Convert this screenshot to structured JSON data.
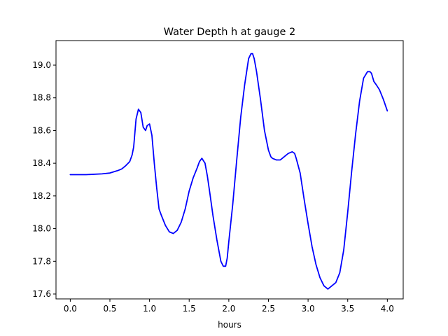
{
  "chart_data": {
    "type": "line",
    "title": "Water Depth h at gauge 2",
    "xlabel": "hours",
    "ylabel": "",
    "xlim": [
      -0.18,
      4.2
    ],
    "ylim": [
      17.57,
      19.15
    ],
    "xticks": [
      0.0,
      0.5,
      1.0,
      1.5,
      2.0,
      2.5,
      3.0,
      3.5,
      4.0
    ],
    "xtick_labels": [
      "0.0",
      "0.5",
      "1.0",
      "1.5",
      "2.0",
      "2.5",
      "3.0",
      "3.5",
      "4.0"
    ],
    "yticks": [
      17.6,
      17.8,
      18.0,
      18.2,
      18.4,
      18.6,
      18.8,
      19.0
    ],
    "ytick_labels": [
      "17.6",
      "17.8",
      "18.0",
      "18.2",
      "18.4",
      "18.6",
      "18.8",
      "19.0"
    ],
    "grid": false,
    "legend": "none",
    "series": [
      {
        "color": "#0000ff",
        "x": [
          0.0,
          0.2,
          0.4,
          0.5,
          0.6,
          0.65,
          0.7,
          0.75,
          0.78,
          0.8,
          0.83,
          0.86,
          0.89,
          0.92,
          0.95,
          0.97,
          1.0,
          1.03,
          1.06,
          1.09,
          1.12,
          1.15,
          1.2,
          1.25,
          1.3,
          1.35,
          1.4,
          1.45,
          1.5,
          1.55,
          1.6,
          1.63,
          1.66,
          1.7,
          1.73,
          1.76,
          1.8,
          1.85,
          1.9,
          1.93,
          1.96,
          1.98,
          2.0,
          2.05,
          2.1,
          2.15,
          2.2,
          2.25,
          2.28,
          2.3,
          2.32,
          2.35,
          2.4,
          2.45,
          2.5,
          2.53,
          2.55,
          2.6,
          2.65,
          2.7,
          2.75,
          2.8,
          2.83,
          2.85,
          2.9,
          2.95,
          3.0,
          3.05,
          3.1,
          3.15,
          3.2,
          3.25,
          3.3,
          3.35,
          3.4,
          3.45,
          3.5,
          3.55,
          3.6,
          3.65,
          3.7,
          3.75,
          3.78,
          3.8,
          3.83,
          3.86,
          3.9,
          3.95,
          4.0
        ],
        "y": [
          18.33,
          18.33,
          18.335,
          18.34,
          18.355,
          18.365,
          18.385,
          18.41,
          18.45,
          18.5,
          18.67,
          18.73,
          18.71,
          18.62,
          18.6,
          18.63,
          18.64,
          18.57,
          18.4,
          18.25,
          18.12,
          18.08,
          18.02,
          17.98,
          17.97,
          17.99,
          18.04,
          18.12,
          18.23,
          18.31,
          18.37,
          18.41,
          18.43,
          18.4,
          18.32,
          18.22,
          18.08,
          17.93,
          17.8,
          17.77,
          17.77,
          17.82,
          17.92,
          18.15,
          18.42,
          18.68,
          18.88,
          19.04,
          19.07,
          19.07,
          19.04,
          18.96,
          18.79,
          18.6,
          18.48,
          18.44,
          18.43,
          18.42,
          18.42,
          18.44,
          18.46,
          18.47,
          18.46,
          18.43,
          18.34,
          18.18,
          18.03,
          17.89,
          17.78,
          17.7,
          17.65,
          17.63,
          17.65,
          17.67,
          17.73,
          17.87,
          18.1,
          18.35,
          18.58,
          18.78,
          18.92,
          18.96,
          18.96,
          18.95,
          18.9,
          18.88,
          18.85,
          18.79,
          18.72
        ]
      }
    ]
  }
}
